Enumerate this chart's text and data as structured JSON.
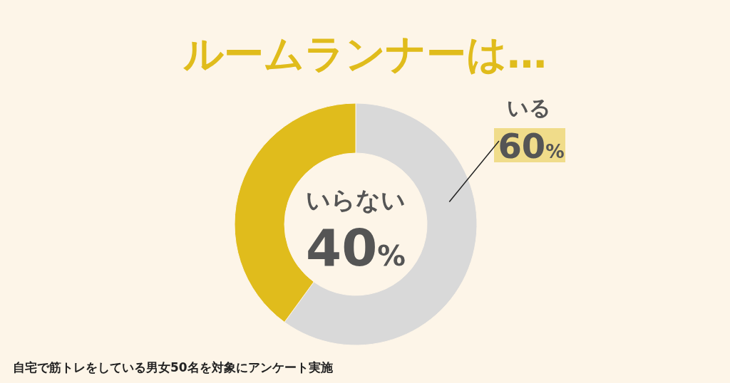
{
  "chart_data": {
    "type": "donut",
    "title": "ルームランナーは…",
    "categories": [
      "いる",
      "いらない"
    ],
    "values": [
      60,
      40
    ],
    "colors": [
      "#d9d9d9",
      "#e0bc1c"
    ],
    "value_labels": [
      "60%",
      "40%"
    ],
    "annotations": [
      "自宅で筋トレをしている男女50名を対象にアンケート実施"
    ]
  }
}
